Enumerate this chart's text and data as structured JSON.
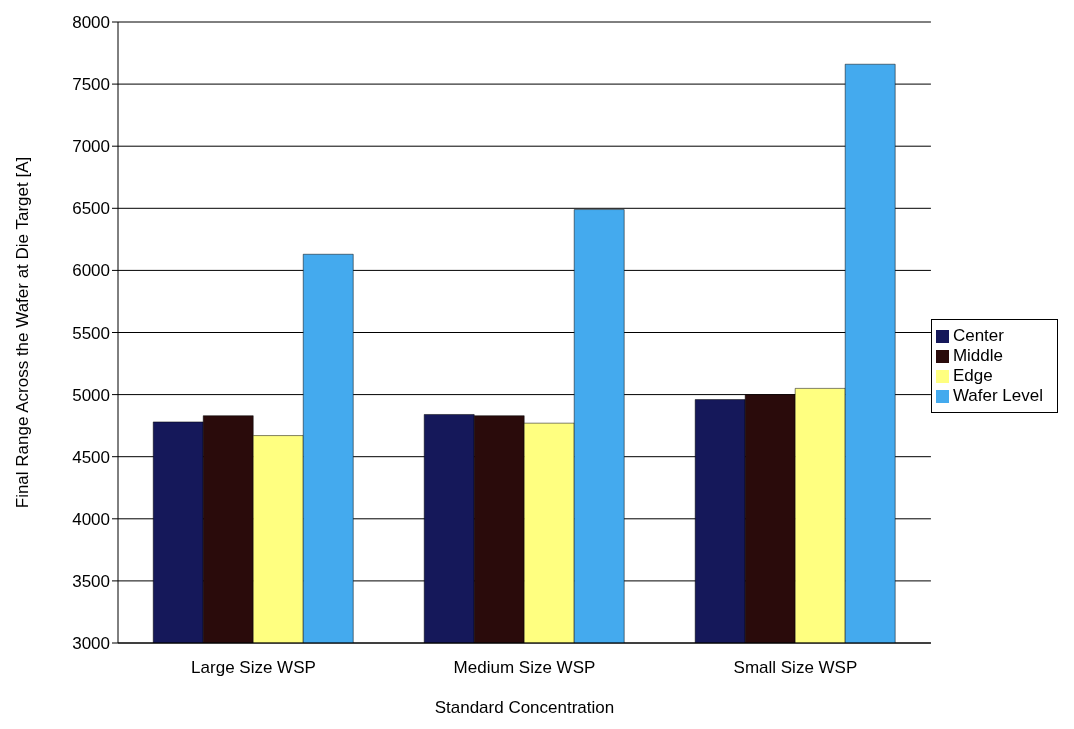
{
  "chart_data": {
    "type": "bar",
    "xlabel": "Standard Concentration",
    "ylabel": "Final Range Across the Wafer at Die Target [A]",
    "categories": [
      "Large Size WSP",
      "Medium Size WSP",
      "Small Size WSP"
    ],
    "series": [
      {
        "name": "Center",
        "color": "#15185a",
        "values": [
          4780,
          4840,
          4960
        ]
      },
      {
        "name": "Middle",
        "color": "#2a0b0b",
        "values": [
          4830,
          4830,
          5000
        ]
      },
      {
        "name": "Edge",
        "color": "#ffff80",
        "values": [
          4670,
          4770,
          5050
        ]
      },
      {
        "name": "Wafer Level",
        "color": "#44aaee",
        "values": [
          6130,
          6490,
          7660
        ]
      }
    ],
    "ylim": [
      3000,
      8000
    ],
    "yticks": [
      3000,
      3500,
      4000,
      4500,
      5000,
      5500,
      6000,
      6500,
      7000,
      7500,
      8000
    ],
    "grid": "y",
    "legend": "right"
  }
}
